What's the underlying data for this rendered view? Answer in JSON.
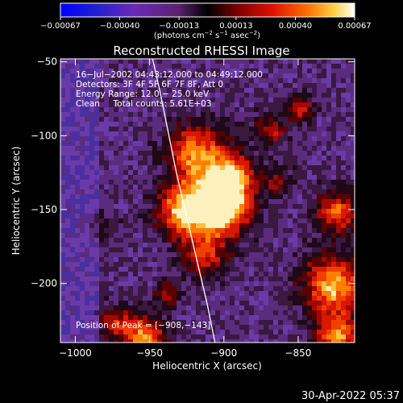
{
  "chart_data": {
    "type": "heatmap",
    "title": "Reconstructed RHESSI Image",
    "xlabel": "Heliocentric X (arcsec)",
    "ylabel": "Heliocentric Y (arcsec)",
    "xlim": [
      -1010,
      -812
    ],
    "ylim": [
      -240,
      -48
    ],
    "xticks": [
      -1000,
      -950,
      -900,
      -850
    ],
    "xtick_labels": [
      "−1000",
      "−950",
      "−900",
      "−850"
    ],
    "yticks": [
      -50,
      -100,
      -150,
      -200
    ],
    "ytick_labels": [
      "−50",
      "−100",
      "−150",
      "−200"
    ],
    "colorbar": {
      "tick_labels": [
        "−0.00067",
        "−0.00040",
        "−0.00013",
        "0.00013",
        "0.00040",
        "0.00067"
      ],
      "tick_values": [
        -0.00067,
        -0.0004,
        -0.00013,
        0.00013,
        0.0004,
        0.00067
      ],
      "range": [
        -0.00067,
        0.00067
      ],
      "units_prefix": "(photons cm",
      "units_exp1": "−2",
      "units_mid": " s",
      "units_exp2": "−1",
      "units_mid2": " asec",
      "units_exp3": "−2",
      "units_suffix": ")"
    },
    "annotations": [
      "16−Jul−2002 04:43:12.000 to 04:49:12.000",
      "Detectors: 3F 4F 5F 6F 7F 8F, Att 0",
      "Energy Range: 12.0 − 25.0 keV",
      "Clean     Total counts: 5.61E+03"
    ],
    "peak_label": "Position of Peak = [−908,−143]",
    "peak": {
      "x": -908,
      "y": -143
    },
    "limb_points": [
      [
        -948,
        -48
      ],
      [
        -943,
        -70
      ],
      [
        -938,
        -95
      ],
      [
        -932,
        -125
      ],
      [
        -925,
        -155
      ],
      [
        -918,
        -185
      ],
      [
        -911,
        -215
      ],
      [
        -906,
        -240
      ]
    ]
  },
  "footer": {
    "timestamp": "30-Apr-2022 05:37"
  }
}
